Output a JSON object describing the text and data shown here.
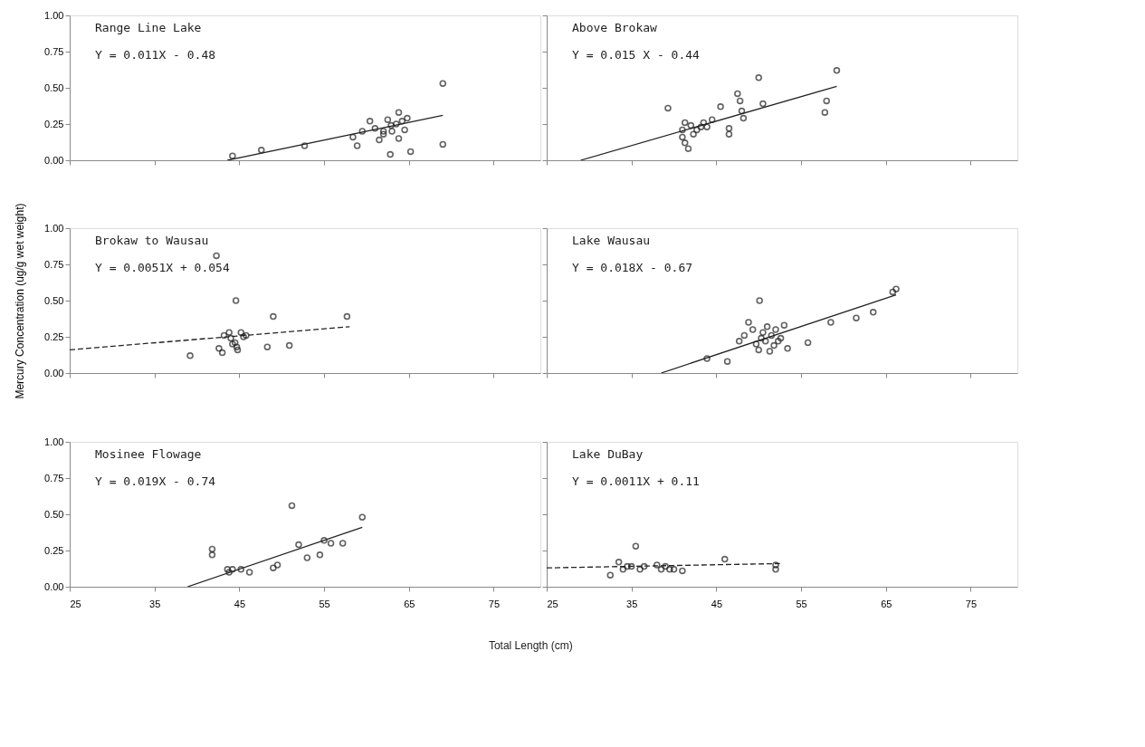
{
  "chart_data": [
    {
      "type": "scatter",
      "title": "Range Line Lake",
      "annotations": [
        "Y = 0.011X - 0.48"
      ],
      "marker": "circle",
      "tick_labels": "y",
      "xlim": [
        25,
        80.5
      ],
      "xticks": [
        25,
        35,
        45,
        55,
        65,
        75
      ],
      "ylim": [
        0,
        1
      ],
      "yticks": [
        {
          "value": 0,
          "label": "0.00"
        },
        {
          "value": 0.25,
          "label": "0.25"
        },
        {
          "value": 0.5,
          "label": "0.50"
        },
        {
          "value": 0.75,
          "label": "0.75"
        },
        {
          "value": 1,
          "label": "1.00"
        }
      ],
      "series": [
        {
          "color": "#222222",
          "x": [
            44.2,
            47.6,
            52.7,
            58.4,
            58.9,
            59.5,
            60.4,
            61,
            62.9,
            62,
            62.5,
            61.5,
            62,
            63,
            63.8,
            63.5,
            64.2,
            64.8,
            64.5,
            63.8,
            62.8,
            65.2,
            69,
            69
          ],
          "values": [
            0.03,
            0.07,
            0.1,
            0.16,
            0.1,
            0.2,
            0.27,
            0.22,
            0.24,
            0.2,
            0.28,
            0.14,
            0.18,
            0.2,
            0.33,
            0.25,
            0.27,
            0.29,
            0.21,
            0.15,
            0.04,
            0.06,
            0.53,
            0.11
          ]
        },
        {
          "type": "line",
          "line_style": "solid",
          "marker": "none",
          "color": "#222222",
          "x": [
            43.6,
            69
          ],
          "values": [
            0,
            0.31
          ]
        }
      ]
    },
    {
      "type": "scatter",
      "title": "Above Brokaw",
      "annotations": [
        "Y = 0.015 X - 0.44"
      ],
      "marker": "circle",
      "tick_labels": false,
      "xlim": [
        25,
        80.5
      ],
      "xticks": [
        25,
        35,
        45,
        55,
        65,
        75
      ],
      "ylim": [
        0,
        1
      ],
      "yticks": [
        0,
        0.25,
        0.5,
        0.75,
        1
      ],
      "series": [
        {
          "color": "#222222",
          "x": [
            39.3,
            41,
            41,
            41.3,
            41.7,
            41.3,
            42,
            42.3,
            42.7,
            43.2,
            43.5,
            43.9,
            44.5,
            45.5,
            46.5,
            46.5,
            47.5,
            47.8,
            48,
            48.2,
            50,
            50.5,
            57.8,
            58,
            59.2
          ],
          "values": [
            0.36,
            0.21,
            0.16,
            0.12,
            0.08,
            0.26,
            0.24,
            0.18,
            0.21,
            0.23,
            0.26,
            0.23,
            0.28,
            0.37,
            0.22,
            0.18,
            0.46,
            0.41,
            0.34,
            0.29,
            0.57,
            0.39,
            0.33,
            0.41,
            0.62
          ]
        },
        {
          "type": "line",
          "line_style": "solid",
          "marker": "none",
          "color": "#222222",
          "x": [
            29,
            59.2
          ],
          "values": [
            0,
            0.51
          ]
        }
      ]
    },
    {
      "type": "scatter",
      "title": "Brokaw to Wausau",
      "annotations": [
        "Y = 0.0051X + 0.054"
      ],
      "ylabel": "Mercury Concentration (ug/g wet weight)",
      "marker": "circle",
      "tick_labels": "y",
      "xlim": [
        25,
        80.5
      ],
      "xticks": [
        25,
        35,
        45,
        55,
        65,
        75
      ],
      "ylim": [
        0,
        1
      ],
      "yticks": [
        {
          "value": 0,
          "label": "0.00"
        },
        {
          "value": 0.25,
          "label": "0.25"
        },
        {
          "value": 0.5,
          "label": "0.50"
        },
        {
          "value": 0.75,
          "label": "0.75"
        },
        {
          "value": 1,
          "label": "1.00"
        }
      ],
      "series": [
        {
          "color": "#222222",
          "x": [
            39.2,
            42.3,
            42.6,
            43,
            43.2,
            43.8,
            44,
            44.2,
            44.5,
            44.7,
            44.8,
            44.6,
            45.2,
            45.5,
            45.8,
            49,
            48.3,
            50.9,
            57.7
          ],
          "values": [
            0.12,
            0.81,
            0.17,
            0.14,
            0.26,
            0.28,
            0.24,
            0.2,
            0.21,
            0.18,
            0.16,
            0.5,
            0.28,
            0.25,
            0.26,
            0.39,
            0.18,
            0.19,
            0.39
          ]
        },
        {
          "type": "line",
          "line_style": "dashed",
          "marker": "none",
          "color": "#222222",
          "x": [
            25,
            58
          ],
          "values": [
            0.16,
            0.32
          ]
        }
      ]
    },
    {
      "type": "scatter",
      "title": "Lake Wausau",
      "annotations": [
        "Y = 0.018X - 0.67"
      ],
      "marker": "circle",
      "tick_labels": false,
      "xlim": [
        25,
        80.5
      ],
      "xticks": [
        25,
        35,
        45,
        55,
        65,
        75
      ],
      "ylim": [
        0,
        1
      ],
      "yticks": [
        0,
        0.25,
        0.5,
        0.75,
        1
      ],
      "series": [
        {
          "color": "#222222",
          "x": [
            43.9,
            46.3,
            47.7,
            48.3,
            48.8,
            49.3,
            49.7,
            50,
            50.3,
            50.5,
            50.8,
            51,
            51.3,
            51.5,
            51.8,
            52,
            52.3,
            52.6,
            53,
            53.4,
            50.1,
            55.8,
            58.5,
            61.5,
            63.5,
            65.8,
            66.2
          ],
          "values": [
            0.1,
            0.08,
            0.22,
            0.26,
            0.35,
            0.3,
            0.2,
            0.16,
            0.24,
            0.28,
            0.22,
            0.32,
            0.15,
            0.26,
            0.19,
            0.3,
            0.22,
            0.24,
            0.33,
            0.17,
            0.5,
            0.21,
            0.35,
            0.38,
            0.42,
            0.56,
            0.58
          ]
        },
        {
          "type": "line",
          "line_style": "solid",
          "marker": "none",
          "color": "#222222",
          "x": [
            38.5,
            66.2
          ],
          "values": [
            0,
            0.54
          ]
        }
      ]
    },
    {
      "type": "scatter",
      "title": "Mosinee Flowage",
      "annotations": [
        "Y = 0.019X - 0.74"
      ],
      "xlabel": "Total Length (cm)",
      "marker": "circle",
      "xlim": [
        25,
        80.5
      ],
      "xticks": [
        25,
        35,
        45,
        55,
        65,
        75
      ],
      "ylim": [
        0,
        1
      ],
      "yticks": [
        {
          "value": 0,
          "label": "0.00"
        },
        {
          "value": 0.25,
          "label": "0.25"
        },
        {
          "value": 0.5,
          "label": "0.50"
        },
        {
          "value": 0.75,
          "label": "0.75"
        },
        {
          "value": 1,
          "label": "1.00"
        }
      ],
      "series": [
        {
          "color": "#222222",
          "x": [
            41.8,
            41.8,
            43.6,
            43.8,
            44.2,
            45.2,
            46.2,
            49,
            49.5,
            51.2,
            52,
            53,
            54.5,
            55,
            55.8,
            57.2,
            59.5
          ],
          "values": [
            0.26,
            0.22,
            0.12,
            0.1,
            0.12,
            0.12,
            0.1,
            0.13,
            0.15,
            0.56,
            0.29,
            0.2,
            0.22,
            0.32,
            0.3,
            0.3,
            0.48
          ]
        },
        {
          "type": "line",
          "line_style": "solid",
          "marker": "none",
          "color": "#222222",
          "x": [
            38.9,
            59.5
          ],
          "values": [
            0,
            0.41
          ]
        }
      ]
    },
    {
      "type": "scatter",
      "title": "Lake DuBay",
      "annotations": [
        "Y = 0.0011X + 0.11"
      ],
      "marker": "circle",
      "tick_labels": "x",
      "xlim": [
        25,
        80.5
      ],
      "xticks": [
        25,
        35,
        45,
        55,
        65,
        75
      ],
      "ylim": [
        0,
        1
      ],
      "yticks": [
        0,
        0.25,
        0.5,
        0.75,
        1
      ],
      "series": [
        {
          "color": "#222222",
          "x": [
            32.5,
            33.5,
            34,
            34.5,
            35,
            35.5,
            36,
            36.5,
            38,
            38.5,
            39,
            39.5,
            40,
            41,
            46,
            52,
            52
          ],
          "values": [
            0.08,
            0.17,
            0.12,
            0.14,
            0.14,
            0.28,
            0.12,
            0.14,
            0.15,
            0.12,
            0.14,
            0.12,
            0.12,
            0.11,
            0.19,
            0.15,
            0.12
          ]
        },
        {
          "type": "line",
          "line_style": "dashed",
          "marker": "none",
          "color": "#222222",
          "x": [
            25,
            52.5
          ],
          "values": [
            0.13,
            0.16
          ]
        }
      ]
    }
  ]
}
